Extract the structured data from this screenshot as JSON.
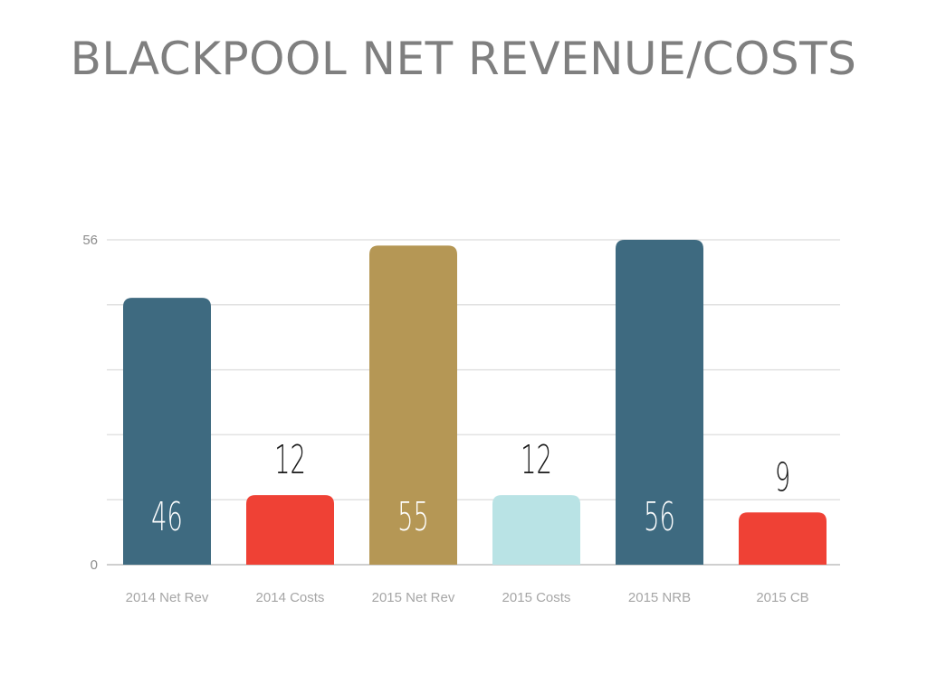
{
  "title": "BLACKPOOL NET REVENUE/COSTS",
  "chart_data": {
    "type": "bar",
    "title": "BLACKPOOL NET REVENUE/COSTS",
    "categories": [
      "2014 Net Rev",
      "2014 Costs",
      "2015 Net Rev",
      "2015 Costs",
      "2015 NRB",
      "2015 CB"
    ],
    "values": [
      46,
      12,
      55,
      12,
      56,
      9
    ],
    "value_labels": [
      "46",
      "12",
      "55",
      "12",
      "56",
      "9"
    ],
    "colors": [
      "#3e6a80",
      "#ef4135",
      "#b59755",
      "#b9e3e5",
      "#3e6a80",
      "#ef4135"
    ],
    "label_inside": [
      true,
      false,
      true,
      false,
      true,
      false
    ],
    "ylim": [
      0,
      56
    ],
    "yticks": [
      0,
      56
    ],
    "ytick_labels": [
      "0",
      "56"
    ],
    "gridlines": 5,
    "grid": true,
    "legend": "none",
    "xlabel": "",
    "ylabel": ""
  }
}
